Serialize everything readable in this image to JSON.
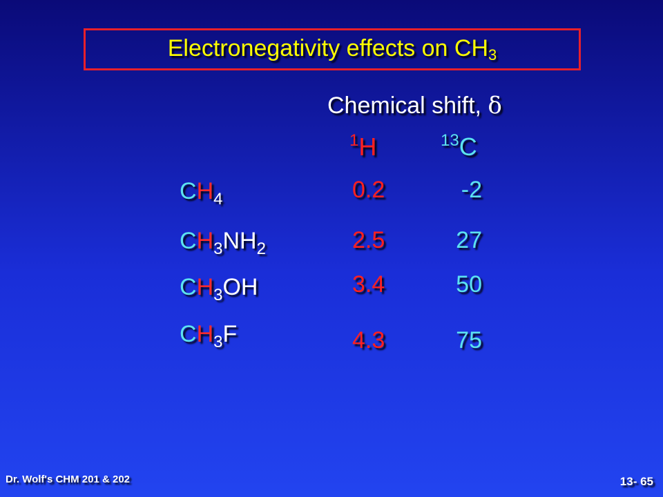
{
  "title": {
    "text": "Electronegativity effects on CH",
    "subscript": "3"
  },
  "shift_label": {
    "text": "Chemical shift, ",
    "symbol": "δ"
  },
  "columns": {
    "h": {
      "mass": "1",
      "element": "H"
    },
    "c": {
      "mass": "13",
      "element": "C"
    }
  },
  "rows": [
    {
      "c": "C",
      "h": "H",
      "h_sub": "4",
      "rest": "",
      "rest_sub": "",
      "h_shift": "0.2",
      "c_shift": "-2"
    },
    {
      "c": "C",
      "h": "H",
      "h_sub": "3",
      "rest": "NH",
      "rest_sub": "2",
      "h_shift": "2.5",
      "c_shift": "27"
    },
    {
      "c": "C",
      "h": "H",
      "h_sub": "3",
      "rest": "OH",
      "rest_sub": "",
      "h_shift": "3.4",
      "c_shift": "50"
    },
    {
      "c": "C",
      "h": "H",
      "h_sub": "3",
      "rest": "F",
      "rest_sub": "",
      "h_shift": "4.3",
      "c_shift": "75"
    }
  ],
  "footer": {
    "left": "Dr. Wolf's CHM 201 & 202",
    "right": "13- 65"
  },
  "colors": {
    "title": "#ffff00",
    "frame": "#e8202a",
    "hydrogen": "#ff2020",
    "carbon": "#5ce2f0",
    "text": "#ffffff"
  }
}
